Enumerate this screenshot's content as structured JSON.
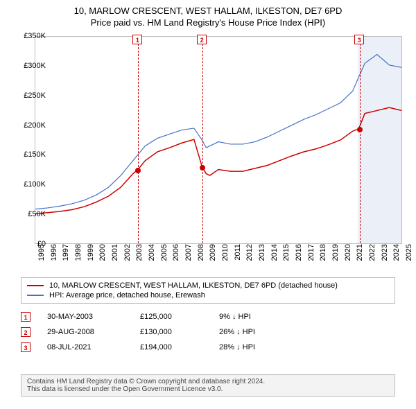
{
  "title": "10, MARLOW CRESCENT, WEST HALLAM, ILKESTON, DE7 6PD",
  "subtitle": "Price paid vs. HM Land Registry's House Price Index (HPI)",
  "chart": {
    "type": "line",
    "background_color": "#ffffff",
    "border_color": "#bbbbbb",
    "ylim": [
      0,
      350000
    ],
    "ytick_step": 50000,
    "yticks": [
      "£0",
      "£50K",
      "£100K",
      "£150K",
      "£200K",
      "£250K",
      "£300K",
      "£350K"
    ],
    "xlim": [
      1995,
      2025
    ],
    "xticks": [
      "1995",
      "1996",
      "1997",
      "1998",
      "1999",
      "2000",
      "2001",
      "2002",
      "2003",
      "2004",
      "2005",
      "2006",
      "2007",
      "2008",
      "2009",
      "2010",
      "2011",
      "2012",
      "2013",
      "2014",
      "2015",
      "2016",
      "2017",
      "2018",
      "2019",
      "2020",
      "2021",
      "2022",
      "2023",
      "2024",
      "2025"
    ],
    "axis_fontsize": 11,
    "title_fontsize": 13,
    "shaded_region": {
      "from_year": 2021.4,
      "to_year": 2025,
      "color": "rgba(120,150,200,0.15)"
    },
    "vlines": [
      {
        "year": 2003.4,
        "label": "1"
      },
      {
        "year": 2008.66,
        "label": "2"
      },
      {
        "year": 2021.5,
        "label": "3"
      }
    ],
    "series": [
      {
        "name": "property",
        "label": "10, MARLOW CRESCENT, WEST HALLAM, ILKESTON, DE7 6PD (detached house)",
        "color": "#cc0000",
        "line_width": 1.5,
        "points_year": [
          1995,
          1996,
          1997,
          1998,
          1999,
          2000,
          2001,
          2002,
          2003,
          2003.4,
          2004,
          2005,
          2006,
          2007,
          2008,
          2008.66,
          2009,
          2009.3,
          2010,
          2011,
          2012,
          2013,
          2014,
          2015,
          2016,
          2017,
          2018,
          2019,
          2020,
          2021,
          2021.5,
          2022,
          2023,
          2024,
          2025
        ],
        "points_value": [
          50000,
          52000,
          54000,
          57000,
          62000,
          70000,
          80000,
          95000,
          118000,
          125000,
          140000,
          155000,
          162000,
          170000,
          176000,
          130000,
          118000,
          115000,
          125000,
          122000,
          122000,
          127000,
          132000,
          140000,
          148000,
          155000,
          160000,
          167000,
          175000,
          190000,
          194000,
          220000,
          225000,
          230000,
          225000
        ],
        "dots": [
          {
            "year": 2003.4,
            "value": 125000
          },
          {
            "year": 2008.66,
            "value": 130000
          },
          {
            "year": 2021.5,
            "value": 194000
          }
        ]
      },
      {
        "name": "hpi",
        "label": "HPI: Average price, detached house, Erewash",
        "color": "#4472c4",
        "line_width": 1.2,
        "points_year": [
          1995,
          1996,
          1997,
          1998,
          1999,
          2000,
          2001,
          2002,
          2003,
          2004,
          2005,
          2006,
          2007,
          2008,
          2008.66,
          2009,
          2010,
          2011,
          2012,
          2013,
          2014,
          2015,
          2016,
          2017,
          2018,
          2019,
          2020,
          2021,
          2022,
          2023,
          2024,
          2025
        ],
        "points_value": [
          58000,
          60000,
          63000,
          67000,
          73000,
          82000,
          95000,
          115000,
          140000,
          165000,
          178000,
          185000,
          192000,
          195000,
          175000,
          162000,
          172000,
          168000,
          168000,
          172000,
          180000,
          190000,
          200000,
          210000,
          218000,
          228000,
          238000,
          258000,
          305000,
          320000,
          302000,
          298000
        ]
      }
    ]
  },
  "legend": {
    "items": [
      {
        "color": "#cc0000",
        "label": "10, MARLOW CRESCENT, WEST HALLAM, ILKESTON, DE7 6PD (detached house)"
      },
      {
        "color": "#4472c4",
        "label": "HPI: Average price, detached house, Erewash"
      }
    ]
  },
  "events": [
    {
      "num": "1",
      "date": "30-MAY-2003",
      "price": "£125,000",
      "diff": "9% ↓ HPI"
    },
    {
      "num": "2",
      "date": "29-AUG-2008",
      "price": "£130,000",
      "diff": "26% ↓ HPI"
    },
    {
      "num": "3",
      "date": "08-JUL-2021",
      "price": "£194,000",
      "diff": "28% ↓ HPI"
    }
  ],
  "footer": {
    "line1": "Contains HM Land Registry data © Crown copyright and database right 2024.",
    "line2": "This data is licensed under the Open Government Licence v3.0."
  }
}
